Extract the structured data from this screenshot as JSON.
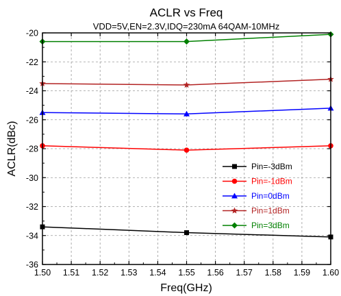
{
  "chart_data": {
    "type": "line",
    "title": "ACLR vs  Freq",
    "subtitle": "VDD=5V,EN=2.3V,IDQ=230mA 64QAM-10MHz",
    "xlabel": "Freq(GHz)",
    "ylabel": "ACLR(dBc)",
    "xlim": [
      1.5,
      1.6
    ],
    "ylim": [
      -36,
      -20
    ],
    "xticks": [
      "1.50",
      "1.51",
      "1.52",
      "1.53",
      "1.54",
      "1.55",
      "1.56",
      "1.57",
      "1.58",
      "1.59",
      "1.60"
    ],
    "yticks": [
      "-20",
      "-22",
      "-24",
      "-26",
      "-28",
      "-30",
      "-32",
      "-34",
      "-36"
    ],
    "grid": true,
    "legend_position": "center-right",
    "series": [
      {
        "name": "Pin=-3dBm",
        "color": "#000000",
        "marker": "square",
        "x": [
          1.5,
          1.55,
          1.6
        ],
        "y": [
          -33.4,
          -33.8,
          -34.1
        ]
      },
      {
        "name": "Pin=-1dBm",
        "color": "#ff0000",
        "marker": "circle",
        "x": [
          1.5,
          1.55,
          1.6
        ],
        "y": [
          -27.8,
          -28.1,
          -27.8
        ]
      },
      {
        "name": "Pin=0dBm",
        "color": "#0000ff",
        "marker": "triangle",
        "x": [
          1.5,
          1.55,
          1.6
        ],
        "y": [
          -25.5,
          -25.6,
          -25.2
        ]
      },
      {
        "name": "Pin=1dBm",
        "color": "#b22222",
        "marker": "star",
        "x": [
          1.5,
          1.55,
          1.6
        ],
        "y": [
          -23.5,
          -23.6,
          -23.2
        ]
      },
      {
        "name": "Pin=3dBm",
        "color": "#008000",
        "marker": "diamond",
        "x": [
          1.5,
          1.55,
          1.6
        ],
        "y": [
          -20.6,
          -20.6,
          -20.1
        ]
      }
    ]
  }
}
